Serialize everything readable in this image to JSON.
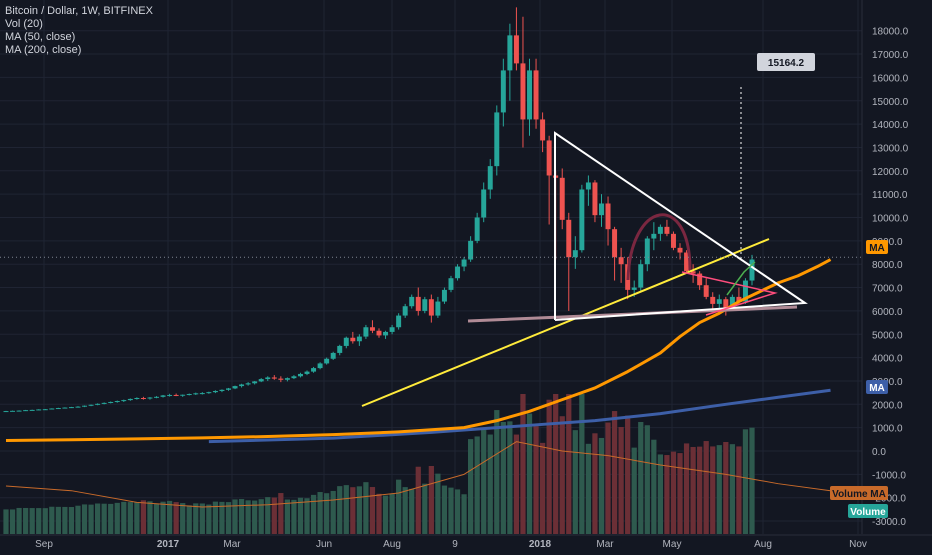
{
  "header": {
    "symbol_line": "Bitcoin / Dollar, 1W, BITFINEX",
    "indicators": [
      "Vol (20)",
      "MA (50, close)",
      "MA (200, close)"
    ]
  },
  "colors": {
    "background": "#131722",
    "grid": "#1f2433",
    "up": "#26a69a",
    "down": "#ef5350",
    "ma50": "#ff9800",
    "ma200": "#3d5fa8",
    "trend_yellow": "#ffeb3b",
    "triangle": "#ffffff",
    "support": "#b08b96",
    "pennant": "#ff4d7d",
    "arc": "#7a2740",
    "volume_up": "#2e5a4e",
    "volume_down": "#6b2f36",
    "volume_ma": "#c86a2a"
  },
  "price_axis": {
    "ticks": [
      "18000.0",
      "17000.0",
      "16000.0",
      "15000.0",
      "14000.0",
      "13000.0",
      "12000.0",
      "11000.0",
      "10000.0",
      "9000.0",
      "8000.0",
      "7000.0",
      "6000.0",
      "5000.0",
      "4000.0",
      "3000.0",
      "2000.0",
      "1000.0",
      "0.0",
      "-1000.0",
      "-2000.0",
      "-3000.0"
    ],
    "tick_values": [
      18000,
      17000,
      16000,
      15000,
      14000,
      13000,
      12000,
      11000,
      10000,
      9000,
      8000,
      7000,
      6000,
      5000,
      4000,
      3000,
      2000,
      1000,
      0,
      -1000,
      -2000,
      -3000
    ]
  },
  "time_axis": {
    "labels": [
      "Sep",
      "2017",
      "Mar",
      "Jun",
      "Aug",
      "9",
      "2018",
      "Mar",
      "May",
      "Aug",
      "Nov"
    ],
    "bold": [
      false,
      true,
      false,
      false,
      false,
      false,
      true,
      false,
      false,
      false,
      false
    ]
  },
  "badges": {
    "target": "15164.2",
    "ma": "MA",
    "ma_blue": "MA",
    "volume_ma": "Volume MA",
    "volume": "Volume"
  },
  "chart_data": {
    "type": "candlestick",
    "title": "Bitcoin / Dollar, 1W, BITFINEX",
    "ylim": [
      -3000,
      18600
    ],
    "candles": [
      [
        1700,
        1720,
        1690,
        1710
      ],
      [
        1710,
        1730,
        1700,
        1720
      ],
      [
        1720,
        1740,
        1700,
        1730
      ],
      [
        1730,
        1760,
        1720,
        1750
      ],
      [
        1750,
        1770,
        1730,
        1760
      ],
      [
        1760,
        1790,
        1750,
        1780
      ],
      [
        1780,
        1800,
        1760,
        1790
      ],
      [
        1790,
        1830,
        1780,
        1820
      ],
      [
        1820,
        1850,
        1800,
        1840
      ],
      [
        1840,
        1870,
        1820,
        1860
      ],
      [
        1860,
        1890,
        1840,
        1880
      ],
      [
        1880,
        1920,
        1860,
        1900
      ],
      [
        1900,
        1950,
        1880,
        1940
      ],
      [
        1940,
        1990,
        1920,
        1980
      ],
      [
        1980,
        2040,
        1960,
        2020
      ],
      [
        2020,
        2080,
        2000,
        2060
      ],
      [
        2060,
        2120,
        2040,
        2100
      ],
      [
        2100,
        2160,
        2070,
        2140
      ],
      [
        2140,
        2200,
        2100,
        2180
      ],
      [
        2180,
        2250,
        2150,
        2230
      ],
      [
        2230,
        2300,
        2200,
        2270
      ],
      [
        2270,
        2320,
        2200,
        2250
      ],
      [
        2250,
        2310,
        2200,
        2290
      ],
      [
        2290,
        2350,
        2260,
        2320
      ],
      [
        2320,
        2400,
        2290,
        2380
      ],
      [
        2380,
        2450,
        2330,
        2400
      ],
      [
        2400,
        2460,
        2350,
        2380
      ],
      [
        2380,
        2420,
        2320,
        2410
      ],
      [
        2410,
        2460,
        2380,
        2440
      ],
      [
        2440,
        2500,
        2400,
        2470
      ],
      [
        2470,
        2520,
        2420,
        2480
      ],
      [
        2480,
        2540,
        2450,
        2520
      ],
      [
        2520,
        2600,
        2480,
        2570
      ],
      [
        2570,
        2640,
        2520,
        2620
      ],
      [
        2620,
        2700,
        2580,
        2680
      ],
      [
        2680,
        2800,
        2650,
        2780
      ],
      [
        2780,
        2880,
        2720,
        2850
      ],
      [
        2850,
        2950,
        2800,
        2900
      ],
      [
        2900,
        3000,
        2850,
        2980
      ],
      [
        2980,
        3120,
        2950,
        3080
      ],
      [
        3080,
        3200,
        3000,
        3150
      ],
      [
        3150,
        3250,
        3050,
        3100
      ],
      [
        3100,
        3200,
        2950,
        3050
      ],
      [
        3050,
        3150,
        2980,
        3120
      ],
      [
        3120,
        3250,
        3080,
        3200
      ],
      [
        3200,
        3350,
        3150,
        3300
      ],
      [
        3300,
        3450,
        3250,
        3400
      ],
      [
        3400,
        3600,
        3350,
        3550
      ],
      [
        3550,
        3800,
        3500,
        3750
      ],
      [
        3750,
        4000,
        3700,
        3950
      ],
      [
        3950,
        4250,
        3900,
        4200
      ],
      [
        4200,
        4550,
        4100,
        4500
      ],
      [
        4500,
        4900,
        4400,
        4850
      ],
      [
        4850,
        5100,
        4600,
        4700
      ],
      [
        4700,
        5000,
        4500,
        4900
      ],
      [
        4900,
        5400,
        4800,
        5300
      ],
      [
        5300,
        5600,
        5050,
        5150
      ],
      [
        5150,
        5250,
        4850,
        4950
      ],
      [
        4950,
        5150,
        4800,
        5100
      ],
      [
        5100,
        5400,
        5000,
        5300
      ],
      [
        5300,
        5900,
        5200,
        5800
      ],
      [
        5800,
        6300,
        5700,
        6200
      ],
      [
        6200,
        6700,
        6100,
        6600
      ],
      [
        6600,
        7000,
        5800,
        6000
      ],
      [
        6000,
        6600,
        5900,
        6500
      ],
      [
        6500,
        6700,
        5500,
        5800
      ],
      [
        5800,
        6600,
        5700,
        6400
      ],
      [
        6400,
        7000,
        6300,
        6900
      ],
      [
        6900,
        7500,
        6800,
        7400
      ],
      [
        7400,
        8000,
        7300,
        7900
      ],
      [
        7900,
        8300,
        7700,
        8200
      ],
      [
        8200,
        9200,
        8100,
        9000
      ],
      [
        9000,
        10200,
        8900,
        10000
      ],
      [
        10000,
        11500,
        9800,
        11200
      ],
      [
        11200,
        12500,
        10800,
        12200
      ],
      [
        12200,
        14800,
        11800,
        14500
      ],
      [
        14500,
        16800,
        13900,
        16300
      ],
      [
        16300,
        18300,
        15000,
        17800
      ],
      [
        17800,
        19000,
        16300,
        16600
      ],
      [
        16600,
        18600,
        13000,
        14200
      ],
      [
        14200,
        16800,
        13500,
        16300
      ],
      [
        16300,
        16800,
        13800,
        14200
      ],
      [
        14200,
        14500,
        12800,
        13300
      ],
      [
        13300,
        13500,
        9700,
        11800
      ],
      [
        11800,
        12000,
        8200,
        11700
      ],
      [
        11700,
        12100,
        9500,
        9900
      ],
      [
        9900,
        10200,
        6000,
        8300
      ],
      [
        8300,
        9200,
        7800,
        8600
      ],
      [
        8600,
        11400,
        8500,
        11200
      ],
      [
        11200,
        11800,
        10500,
        11500
      ],
      [
        11500,
        11600,
        9800,
        10100
      ],
      [
        10100,
        11000,
        9600,
        10600
      ],
      [
        10600,
        10900,
        8800,
        9500
      ],
      [
        9500,
        9600,
        7300,
        8300
      ],
      [
        8300,
        8700,
        7200,
        8000
      ],
      [
        8000,
        8300,
        6500,
        6900
      ],
      [
        6900,
        7300,
        6600,
        7000
      ],
      [
        7000,
        8200,
        6800,
        8000
      ],
      [
        8000,
        9200,
        7700,
        9100
      ],
      [
        9100,
        9800,
        8600,
        9300
      ],
      [
        9300,
        9700,
        9000,
        9600
      ],
      [
        9600,
        9900,
        9200,
        9300
      ],
      [
        9300,
        9400,
        8600,
        8700
      ],
      [
        8700,
        8900,
        8200,
        8500
      ],
      [
        8500,
        8600,
        7600,
        7700
      ],
      [
        7700,
        8000,
        7200,
        7600
      ],
      [
        7600,
        7700,
        6900,
        7100
      ],
      [
        7100,
        7400,
        6500,
        6600
      ],
      [
        6600,
        6800,
        6100,
        6300
      ],
      [
        6300,
        6700,
        6000,
        6500
      ],
      [
        6500,
        6600,
        5800,
        6100
      ],
      [
        6100,
        6700,
        6000,
        6600
      ],
      [
        6600,
        7000,
        6300,
        6400
      ],
      [
        6400,
        7400,
        6300,
        7300
      ],
      [
        7300,
        8400,
        7100,
        8200
      ]
    ],
    "ma50": [
      [
        0,
        450
      ],
      [
        10,
        480
      ],
      [
        20,
        520
      ],
      [
        30,
        560
      ],
      [
        40,
        620
      ],
      [
        50,
        700
      ],
      [
        60,
        820
      ],
      [
        70,
        1000
      ],
      [
        75,
        1300
      ],
      [
        80,
        1700
      ],
      [
        85,
        2200
      ],
      [
        90,
        2700
      ],
      [
        95,
        3400
      ],
      [
        100,
        4200
      ],
      [
        103,
        4900
      ],
      [
        106,
        5500
      ],
      [
        109,
        5900
      ],
      [
        112,
        6400
      ],
      [
        115,
        6800
      ],
      [
        118,
        7200
      ],
      [
        121,
        7500
      ],
      [
        124,
        7900
      ],
      [
        126,
        8200
      ]
    ],
    "ma200": [
      [
        31,
        400
      ],
      [
        50,
        550
      ],
      [
        65,
        800
      ],
      [
        80,
        1100
      ],
      [
        90,
        1300
      ],
      [
        100,
        1600
      ],
      [
        110,
        2000
      ],
      [
        118,
        2300
      ],
      [
        126,
        2600
      ]
    ],
    "volume_ma": [
      [
        0,
        -1500
      ],
      [
        10,
        -1700
      ],
      [
        20,
        -2200
      ],
      [
        30,
        -2400
      ],
      [
        40,
        -2300
      ],
      [
        50,
        -2100
      ],
      [
        60,
        -1800
      ],
      [
        70,
        -1000
      ],
      [
        78,
        400
      ],
      [
        85,
        0
      ],
      [
        92,
        -200
      ],
      [
        100,
        -600
      ],
      [
        110,
        -1000
      ],
      [
        118,
        -1400
      ],
      [
        126,
        -1700
      ]
    ],
    "annotations": {
      "target_price": 15164.2
    }
  }
}
